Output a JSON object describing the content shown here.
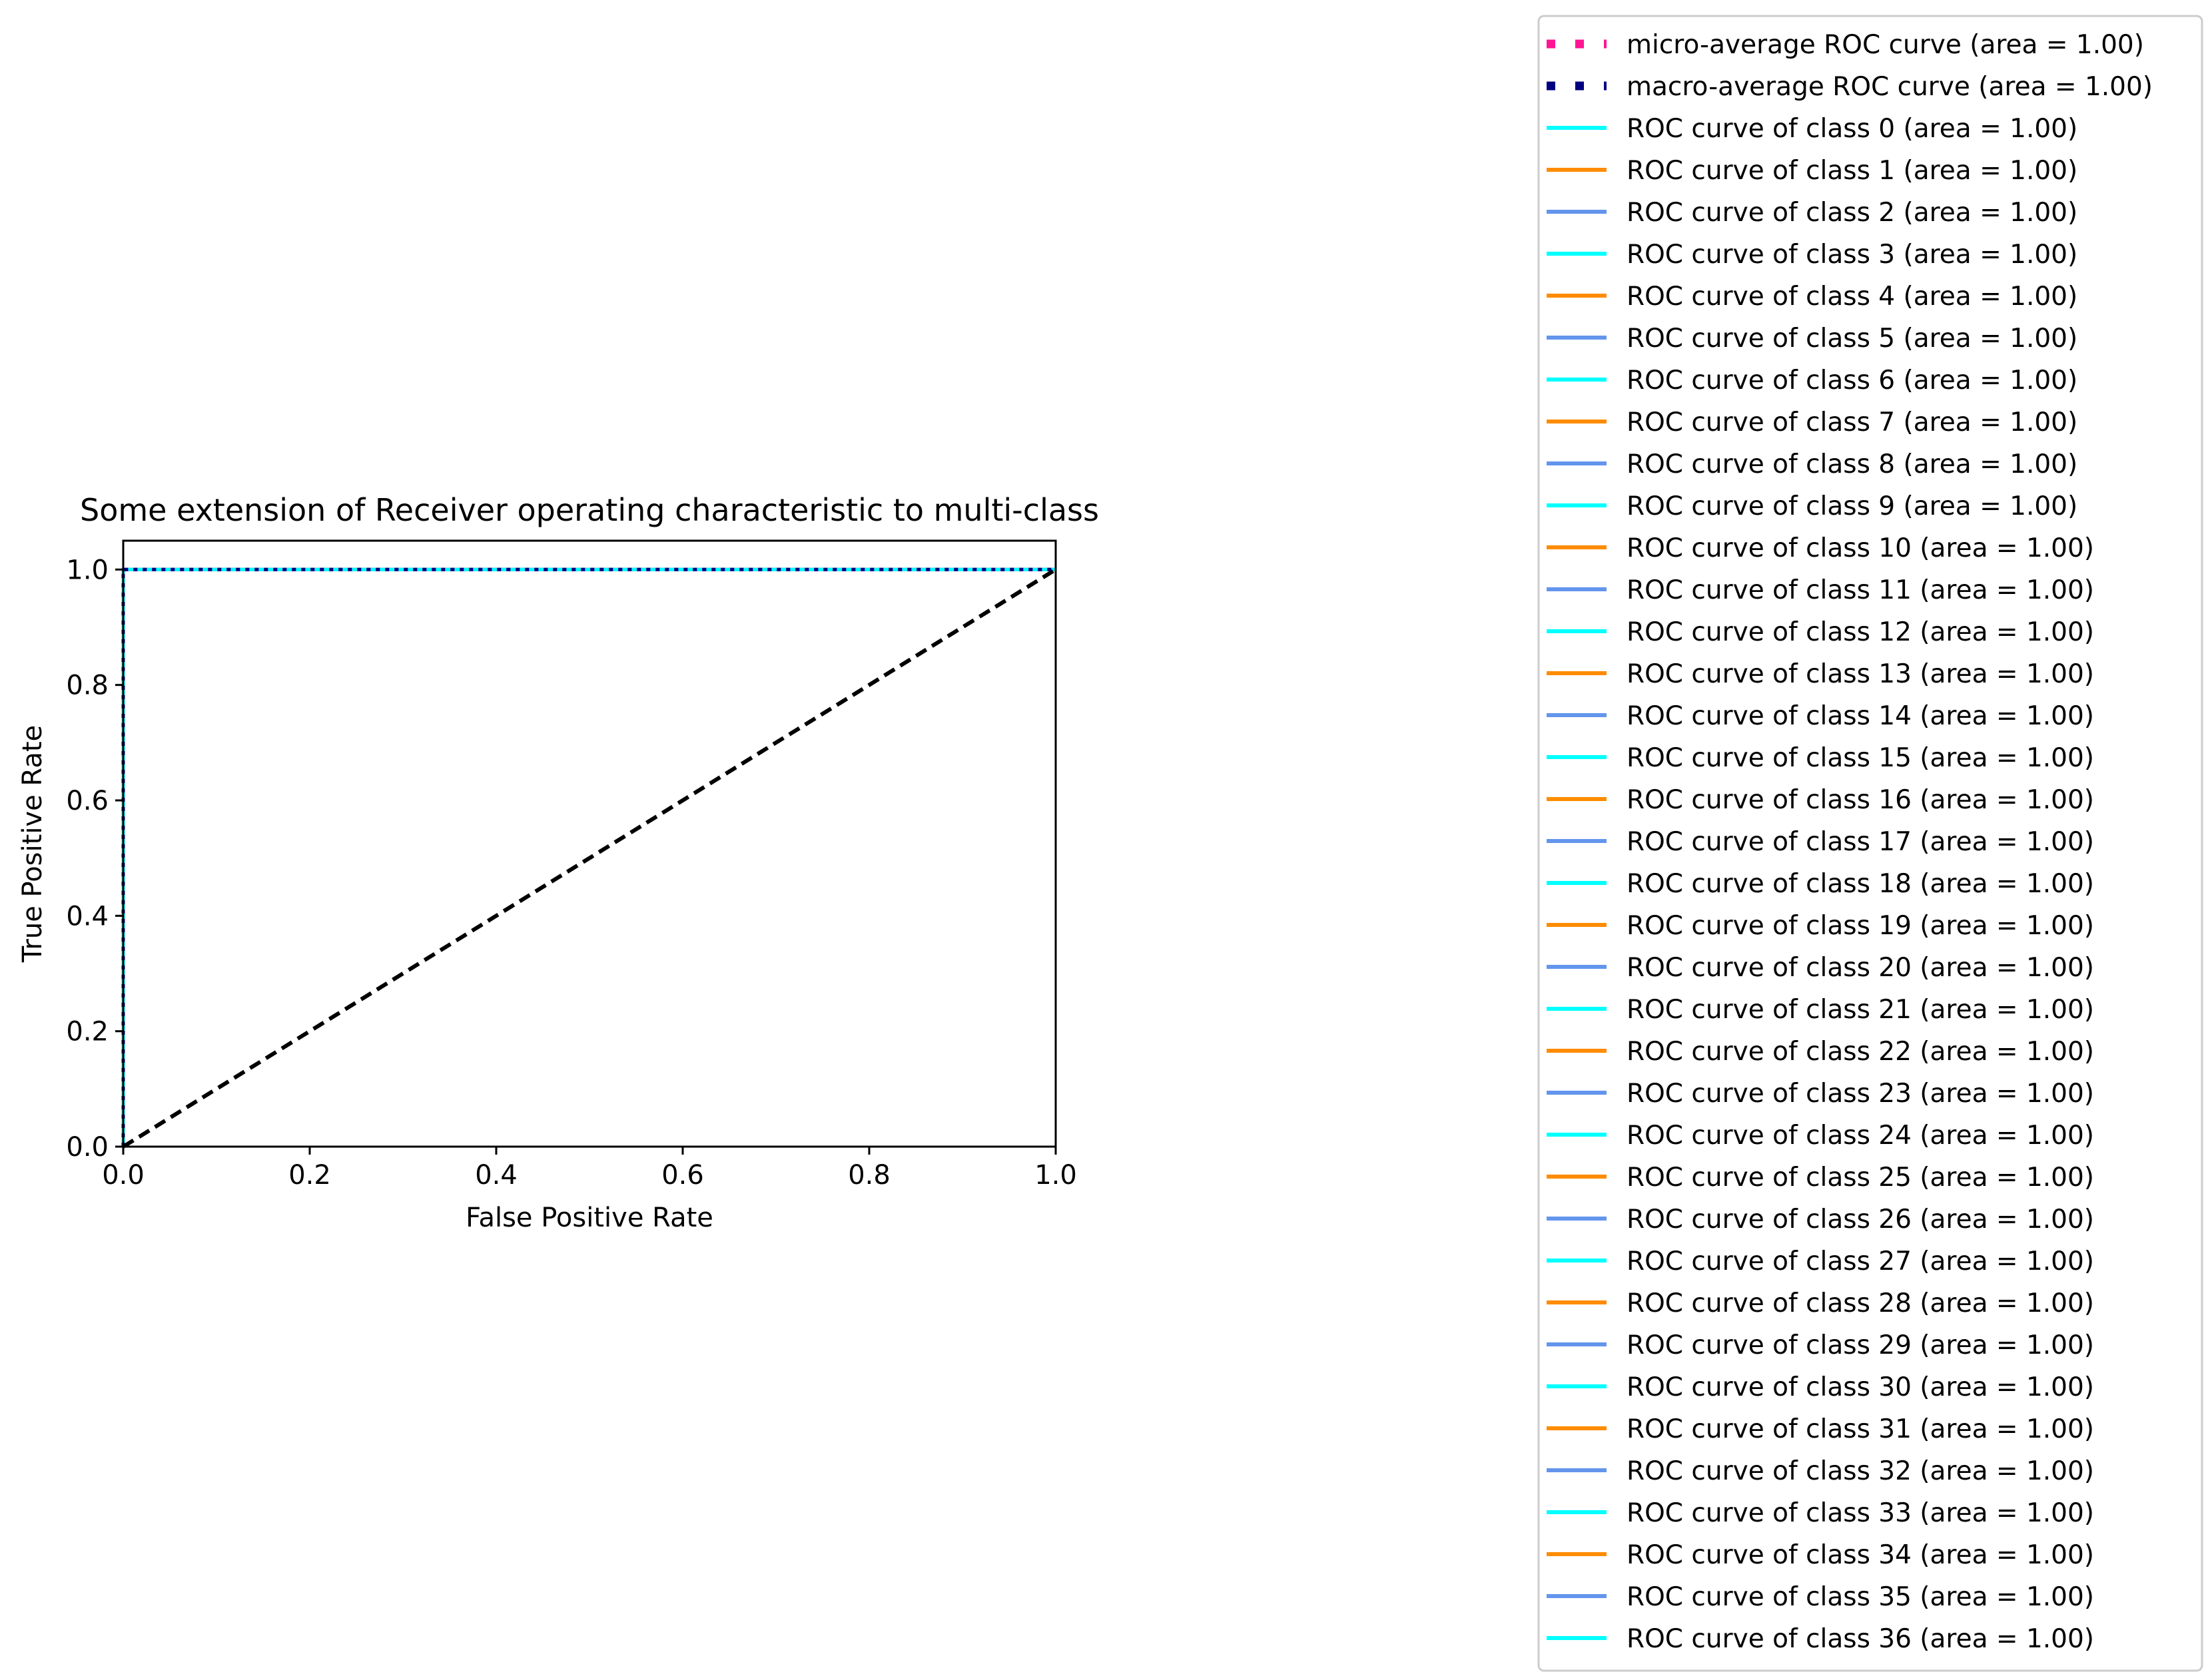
{
  "chart_data": {
    "type": "line",
    "title": "Some extension of Receiver operating characteristic to multi-class",
    "xlabel": "False Positive Rate",
    "ylabel": "True Positive Rate",
    "xlim": [
      0.0,
      1.0
    ],
    "ylim": [
      0.0,
      1.05
    ],
    "xticks": [
      "0.0",
      "0.2",
      "0.4",
      "0.6",
      "0.8",
      "1.0"
    ],
    "yticks": [
      "0.0",
      "0.2",
      "0.4",
      "0.6",
      "0.8",
      "1.0"
    ],
    "grid": false,
    "legend_position": "outside-right",
    "series": [
      {
        "name": "micro-average ROC curve (area = 1.00)",
        "color": "#ff1493",
        "style": "dotted",
        "x": [
          0.0,
          0.0,
          1.0
        ],
        "y": [
          0.0,
          1.0,
          1.0
        ]
      },
      {
        "name": "macro-average ROC curve (area = 1.00)",
        "color": "#000080",
        "style": "dotted",
        "x": [
          0.0,
          0.0,
          1.0
        ],
        "y": [
          0.0,
          1.0,
          1.0
        ]
      },
      {
        "name": "ROC curve of class 0 (area = 1.00)",
        "color": "#00ffff",
        "style": "solid",
        "x": [
          0.0,
          0.0,
          1.0
        ],
        "y": [
          0.0,
          1.0,
          1.0
        ]
      },
      {
        "name": "ROC curve of class 1 (area = 1.00)",
        "color": "#ff8c00",
        "style": "solid",
        "x": [
          0.0,
          0.0,
          1.0
        ],
        "y": [
          0.0,
          1.0,
          1.0
        ]
      },
      {
        "name": "ROC curve of class 2 (area = 1.00)",
        "color": "#6495ed",
        "style": "solid",
        "x": [
          0.0,
          0.0,
          1.0
        ],
        "y": [
          0.0,
          1.0,
          1.0
        ]
      },
      {
        "name": "ROC curve of class 3 (area = 1.00)",
        "color": "#00ffff",
        "style": "solid",
        "x": [
          0.0,
          0.0,
          1.0
        ],
        "y": [
          0.0,
          1.0,
          1.0
        ]
      },
      {
        "name": "ROC curve of class 4 (area = 1.00)",
        "color": "#ff8c00",
        "style": "solid",
        "x": [
          0.0,
          0.0,
          1.0
        ],
        "y": [
          0.0,
          1.0,
          1.0
        ]
      },
      {
        "name": "ROC curve of class 5 (area = 1.00)",
        "color": "#6495ed",
        "style": "solid",
        "x": [
          0.0,
          0.0,
          1.0
        ],
        "y": [
          0.0,
          1.0,
          1.0
        ]
      },
      {
        "name": "ROC curve of class 6 (area = 1.00)",
        "color": "#00ffff",
        "style": "solid",
        "x": [
          0.0,
          0.0,
          1.0
        ],
        "y": [
          0.0,
          1.0,
          1.0
        ]
      },
      {
        "name": "ROC curve of class 7 (area = 1.00)",
        "color": "#ff8c00",
        "style": "solid",
        "x": [
          0.0,
          0.0,
          1.0
        ],
        "y": [
          0.0,
          1.0,
          1.0
        ]
      },
      {
        "name": "ROC curve of class 8 (area = 1.00)",
        "color": "#6495ed",
        "style": "solid",
        "x": [
          0.0,
          0.0,
          1.0
        ],
        "y": [
          0.0,
          1.0,
          1.0
        ]
      },
      {
        "name": "ROC curve of class 9 (area = 1.00)",
        "color": "#00ffff",
        "style": "solid",
        "x": [
          0.0,
          0.0,
          1.0
        ],
        "y": [
          0.0,
          1.0,
          1.0
        ]
      },
      {
        "name": "ROC curve of class 10 (area = 1.00)",
        "color": "#ff8c00",
        "style": "solid",
        "x": [
          0.0,
          0.0,
          1.0
        ],
        "y": [
          0.0,
          1.0,
          1.0
        ]
      },
      {
        "name": "ROC curve of class 11 (area = 1.00)",
        "color": "#6495ed",
        "style": "solid",
        "x": [
          0.0,
          0.0,
          1.0
        ],
        "y": [
          0.0,
          1.0,
          1.0
        ]
      },
      {
        "name": "ROC curve of class 12 (area = 1.00)",
        "color": "#00ffff",
        "style": "solid",
        "x": [
          0.0,
          0.0,
          1.0
        ],
        "y": [
          0.0,
          1.0,
          1.0
        ]
      },
      {
        "name": "ROC curve of class 13 (area = 1.00)",
        "color": "#ff8c00",
        "style": "solid",
        "x": [
          0.0,
          0.0,
          1.0
        ],
        "y": [
          0.0,
          1.0,
          1.0
        ]
      },
      {
        "name": "ROC curve of class 14 (area = 1.00)",
        "color": "#6495ed",
        "style": "solid",
        "x": [
          0.0,
          0.0,
          1.0
        ],
        "y": [
          0.0,
          1.0,
          1.0
        ]
      },
      {
        "name": "ROC curve of class 15 (area = 1.00)",
        "color": "#00ffff",
        "style": "solid",
        "x": [
          0.0,
          0.0,
          1.0
        ],
        "y": [
          0.0,
          1.0,
          1.0
        ]
      },
      {
        "name": "ROC curve of class 16 (area = 1.00)",
        "color": "#ff8c00",
        "style": "solid",
        "x": [
          0.0,
          0.0,
          1.0
        ],
        "y": [
          0.0,
          1.0,
          1.0
        ]
      },
      {
        "name": "ROC curve of class 17 (area = 1.00)",
        "color": "#6495ed",
        "style": "solid",
        "x": [
          0.0,
          0.0,
          1.0
        ],
        "y": [
          0.0,
          1.0,
          1.0
        ]
      },
      {
        "name": "ROC curve of class 18 (area = 1.00)",
        "color": "#00ffff",
        "style": "solid",
        "x": [
          0.0,
          0.0,
          1.0
        ],
        "y": [
          0.0,
          1.0,
          1.0
        ]
      },
      {
        "name": "ROC curve of class 19 (area = 1.00)",
        "color": "#ff8c00",
        "style": "solid",
        "x": [
          0.0,
          0.0,
          1.0
        ],
        "y": [
          0.0,
          1.0,
          1.0
        ]
      },
      {
        "name": "ROC curve of class 20 (area = 1.00)",
        "color": "#6495ed",
        "style": "solid",
        "x": [
          0.0,
          0.0,
          1.0
        ],
        "y": [
          0.0,
          1.0,
          1.0
        ]
      },
      {
        "name": "ROC curve of class 21 (area = 1.00)",
        "color": "#00ffff",
        "style": "solid",
        "x": [
          0.0,
          0.0,
          1.0
        ],
        "y": [
          0.0,
          1.0,
          1.0
        ]
      },
      {
        "name": "ROC curve of class 22 (area = 1.00)",
        "color": "#ff8c00",
        "style": "solid",
        "x": [
          0.0,
          0.0,
          1.0
        ],
        "y": [
          0.0,
          1.0,
          1.0
        ]
      },
      {
        "name": "ROC curve of class 23 (area = 1.00)",
        "color": "#6495ed",
        "style": "solid",
        "x": [
          0.0,
          0.0,
          1.0
        ],
        "y": [
          0.0,
          1.0,
          1.0
        ]
      },
      {
        "name": "ROC curve of class 24 (area = 1.00)",
        "color": "#00ffff",
        "style": "solid",
        "x": [
          0.0,
          0.0,
          1.0
        ],
        "y": [
          0.0,
          1.0,
          1.0
        ]
      },
      {
        "name": "ROC curve of class 25 (area = 1.00)",
        "color": "#ff8c00",
        "style": "solid",
        "x": [
          0.0,
          0.0,
          1.0
        ],
        "y": [
          0.0,
          1.0,
          1.0
        ]
      },
      {
        "name": "ROC curve of class 26 (area = 1.00)",
        "color": "#6495ed",
        "style": "solid",
        "x": [
          0.0,
          0.0,
          1.0
        ],
        "y": [
          0.0,
          1.0,
          1.0
        ]
      },
      {
        "name": "ROC curve of class 27 (area = 1.00)",
        "color": "#00ffff",
        "style": "solid",
        "x": [
          0.0,
          0.0,
          1.0
        ],
        "y": [
          0.0,
          1.0,
          1.0
        ]
      },
      {
        "name": "ROC curve of class 28 (area = 1.00)",
        "color": "#ff8c00",
        "style": "solid",
        "x": [
          0.0,
          0.0,
          1.0
        ],
        "y": [
          0.0,
          1.0,
          1.0
        ]
      },
      {
        "name": "ROC curve of class 29 (area = 1.00)",
        "color": "#6495ed",
        "style": "solid",
        "x": [
          0.0,
          0.0,
          1.0
        ],
        "y": [
          0.0,
          1.0,
          1.0
        ]
      },
      {
        "name": "ROC curve of class 30 (area = 1.00)",
        "color": "#00ffff",
        "style": "solid",
        "x": [
          0.0,
          0.0,
          1.0
        ],
        "y": [
          0.0,
          1.0,
          1.0
        ]
      },
      {
        "name": "ROC curve of class 31 (area = 1.00)",
        "color": "#ff8c00",
        "style": "solid",
        "x": [
          0.0,
          0.0,
          1.0
        ],
        "y": [
          0.0,
          1.0,
          1.0
        ]
      },
      {
        "name": "ROC curve of class 32 (area = 1.00)",
        "color": "#6495ed",
        "style": "solid",
        "x": [
          0.0,
          0.0,
          1.0
        ],
        "y": [
          0.0,
          1.0,
          1.0
        ]
      },
      {
        "name": "ROC curve of class 33 (area = 1.00)",
        "color": "#00ffff",
        "style": "solid",
        "x": [
          0.0,
          0.0,
          1.0
        ],
        "y": [
          0.0,
          1.0,
          1.0
        ]
      },
      {
        "name": "ROC curve of class 34 (area = 1.00)",
        "color": "#ff8c00",
        "style": "solid",
        "x": [
          0.0,
          0.0,
          1.0
        ],
        "y": [
          0.0,
          1.0,
          1.0
        ]
      },
      {
        "name": "ROC curve of class 35 (area = 1.00)",
        "color": "#6495ed",
        "style": "solid",
        "x": [
          0.0,
          0.0,
          1.0
        ],
        "y": [
          0.0,
          1.0,
          1.0
        ]
      },
      {
        "name": "ROC curve of class 36 (area = 1.00)",
        "color": "#00ffff",
        "style": "solid",
        "x": [
          0.0,
          0.0,
          1.0
        ],
        "y": [
          0.0,
          1.0,
          1.0
        ]
      }
    ],
    "reference_line": {
      "color": "#000000",
      "style": "dashed",
      "x": [
        0.0,
        1.0
      ],
      "y": [
        0.0,
        1.0
      ]
    }
  }
}
